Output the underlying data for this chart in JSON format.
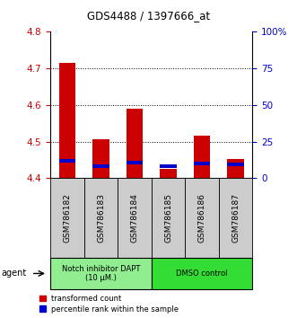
{
  "title": "GDS4488 / 1397666_at",
  "samples": [
    "GSM786182",
    "GSM786183",
    "GSM786184",
    "GSM786185",
    "GSM786186",
    "GSM786187"
  ],
  "red_values": [
    4.715,
    4.505,
    4.59,
    4.425,
    4.515,
    4.452
  ],
  "blue_values": [
    4.448,
    4.432,
    4.443,
    4.432,
    4.44,
    4.438
  ],
  "ymin": 4.4,
  "ymax": 4.8,
  "y_ticks": [
    4.4,
    4.5,
    4.6,
    4.7,
    4.8
  ],
  "y2_ticks": [
    0,
    25,
    50,
    75,
    100
  ],
  "y2_labels": [
    "0",
    "25",
    "50",
    "75",
    "100%"
  ],
  "groups": [
    {
      "label": "Notch inhibitor DAPT\n(10 μM.)",
      "color": "#90ee90",
      "start": 0,
      "end": 3
    },
    {
      "label": "DMSO control",
      "color": "#33dd33",
      "start": 3,
      "end": 6
    }
  ],
  "bar_width": 0.5,
  "red_color": "#cc0000",
  "blue_color": "#0000cc",
  "bg_plot": "#ffffff",
  "tick_color_left": "#cc0000",
  "tick_color_right": "#0000cc",
  "legend_red": "transformed count",
  "legend_blue": "percentile rank within the sample",
  "agent_label": "agent",
  "bar_base": 4.4,
  "sample_box_color": "#cccccc",
  "blue_bar_height": 0.01
}
